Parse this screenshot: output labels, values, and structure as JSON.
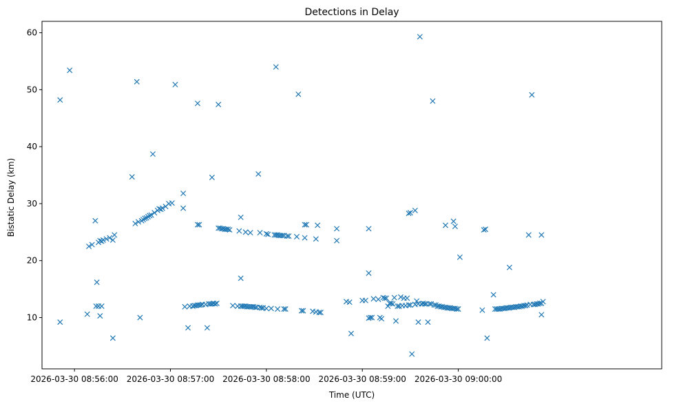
{
  "chart_data": {
    "type": "scatter",
    "title": "Detections in Delay",
    "xlabel": "Time (UTC)",
    "ylabel": "Bistatic Delay (km)",
    "x_unit": "seconds after 2026-03-30 08:55:00 UTC",
    "xlim": [
      39.7,
      427.2
    ],
    "ylim": [
      1.0,
      62.0
    ],
    "x_ticks": [
      {
        "value": 60,
        "label": "2026-03-30 08:56:00"
      },
      {
        "value": 120,
        "label": "2026-03-30 08:57:00"
      },
      {
        "value": 180,
        "label": "2026-03-30 08:58:00"
      },
      {
        "value": 240,
        "label": "2026-03-30 08:59:00"
      },
      {
        "value": 300,
        "label": "2026-03-30 09:00:00"
      }
    ],
    "y_ticks": [
      10,
      20,
      30,
      40,
      50,
      60
    ],
    "marker": "x",
    "color": "#1f77b4",
    "series": [
      {
        "name": "detections",
        "points": [
          [
            51,
            48.2
          ],
          [
            51,
            9.2
          ],
          [
            57,
            53.4
          ],
          [
            68,
            10.6
          ],
          [
            69,
            22.5
          ],
          [
            71,
            22.8
          ],
          [
            73,
            27.0
          ],
          [
            73.5,
            12.0
          ],
          [
            74,
            16.2
          ],
          [
            75,
            23.2
          ],
          [
            75,
            12.0
          ],
          [
            76,
            10.3
          ],
          [
            76,
            23.5
          ],
          [
            77,
            23.4
          ],
          [
            77,
            12.0
          ],
          [
            78,
            23.6
          ],
          [
            80,
            23.8
          ],
          [
            82,
            24.0
          ],
          [
            84,
            23.6
          ],
          [
            85,
            24.5
          ],
          [
            84,
            6.4
          ],
          [
            96,
            34.7
          ],
          [
            98,
            26.5
          ],
          [
            99,
            51.4
          ],
          [
            100,
            26.8
          ],
          [
            101,
            10.0
          ],
          [
            102,
            27.0
          ],
          [
            103,
            27.2
          ],
          [
            104,
            27.4
          ],
          [
            105,
            27.5
          ],
          [
            106,
            27.7
          ],
          [
            107,
            27.9
          ],
          [
            108,
            28.0
          ],
          [
            109,
            38.7
          ],
          [
            110,
            28.4
          ],
          [
            112,
            28.8
          ],
          [
            113,
            29.1
          ],
          [
            114,
            29.0
          ],
          [
            115,
            29.2
          ],
          [
            117,
            29.5
          ],
          [
            119,
            30.0
          ],
          [
            121,
            30.1
          ],
          [
            123,
            50.9
          ],
          [
            128,
            31.8
          ],
          [
            128,
            29.2
          ],
          [
            129,
            11.9
          ],
          [
            131,
            8.2
          ],
          [
            132,
            12.0
          ],
          [
            134,
            12.0
          ],
          [
            135,
            12.1
          ],
          [
            136,
            12.1
          ],
          [
            137,
            12.2
          ],
          [
            137,
            47.6
          ],
          [
            137,
            26.3
          ],
          [
            138,
            26.3
          ],
          [
            138,
            12.2
          ],
          [
            139,
            12.2
          ],
          [
            140,
            12.3
          ],
          [
            142,
            12.3
          ],
          [
            143,
            8.2
          ],
          [
            144,
            12.4
          ],
          [
            145,
            12.4
          ],
          [
            146,
            34.6
          ],
          [
            146,
            12.4
          ],
          [
            147,
            12.5
          ],
          [
            148,
            12.4
          ],
          [
            149,
            12.5
          ],
          [
            150,
            47.4
          ],
          [
            150,
            25.7
          ],
          [
            151,
            25.7
          ],
          [
            152,
            25.6
          ],
          [
            153,
            25.6
          ],
          [
            154,
            25.5
          ],
          [
            155,
            25.5
          ],
          [
            156,
            25.5
          ],
          [
            157,
            25.4
          ],
          [
            159,
            12.1
          ],
          [
            162,
            12.0
          ],
          [
            163,
            25.2
          ],
          [
            164,
            27.6
          ],
          [
            164,
            16.9
          ],
          [
            164,
            12.0
          ],
          [
            165,
            12.0
          ],
          [
            166,
            12.0
          ],
          [
            167,
            25.0
          ],
          [
            167,
            12.0
          ],
          [
            168,
            11.9
          ],
          [
            169,
            11.9
          ],
          [
            170,
            24.9
          ],
          [
            170,
            11.9
          ],
          [
            171,
            11.9
          ],
          [
            172,
            11.9
          ],
          [
            173,
            11.8
          ],
          [
            174,
            11.8
          ],
          [
            175,
            35.2
          ],
          [
            176,
            24.9
          ],
          [
            176,
            11.8
          ],
          [
            177,
            11.7
          ],
          [
            178,
            11.7
          ],
          [
            180,
            24.7
          ],
          [
            180,
            11.6
          ],
          [
            181,
            24.6
          ],
          [
            183,
            11.6
          ],
          [
            185,
            24.5
          ],
          [
            186,
            54.0
          ],
          [
            186,
            24.5
          ],
          [
            187,
            24.5
          ],
          [
            187,
            11.5
          ],
          [
            188,
            24.4
          ],
          [
            189,
            24.4
          ],
          [
            190,
            24.4
          ],
          [
            191,
            11.5
          ],
          [
            191,
            24.4
          ],
          [
            192,
            11.5
          ],
          [
            193,
            24.3
          ],
          [
            194,
            24.3
          ],
          [
            199,
            24.2
          ],
          [
            200,
            49.2
          ],
          [
            202,
            11.2
          ],
          [
            203,
            11.2
          ],
          [
            204,
            26.3
          ],
          [
            205,
            26.3
          ],
          [
            204,
            24.0
          ],
          [
            209,
            11.1
          ],
          [
            211,
            23.8
          ],
          [
            211,
            11.0
          ],
          [
            212,
            26.2
          ],
          [
            213,
            10.9
          ],
          [
            214,
            10.9
          ],
          [
            224,
            25.6
          ],
          [
            224,
            23.5
          ],
          [
            230,
            12.8
          ],
          [
            232,
            12.7
          ],
          [
            233,
            7.2
          ],
          [
            240,
            13.0
          ],
          [
            242,
            13.0
          ],
          [
            244,
            25.6
          ],
          [
            244,
            17.8
          ],
          [
            244,
            9.9
          ],
          [
            245,
            10.0
          ],
          [
            246,
            10.0
          ],
          [
            247,
            13.3
          ],
          [
            250,
            13.2
          ],
          [
            251,
            10.0
          ],
          [
            252,
            9.8
          ],
          [
            253,
            13.5
          ],
          [
            254,
            13.4
          ],
          [
            255,
            13.4
          ],
          [
            256,
            12.0
          ],
          [
            257,
            12.5
          ],
          [
            258,
            12.5
          ],
          [
            259,
            12.4
          ],
          [
            260,
            13.5
          ],
          [
            261,
            9.4
          ],
          [
            262,
            12.0
          ],
          [
            263,
            12.0
          ],
          [
            264,
            13.6
          ],
          [
            265,
            12.1
          ],
          [
            266,
            13.4
          ],
          [
            267,
            12.1
          ],
          [
            268,
            13.4
          ],
          [
            269,
            28.3
          ],
          [
            269,
            12.2
          ],
          [
            270,
            28.4
          ],
          [
            270,
            12.2
          ],
          [
            271,
            3.6
          ],
          [
            273,
            28.8
          ],
          [
            273,
            12.3
          ],
          [
            274,
            12.9
          ],
          [
            275,
            12.4
          ],
          [
            275,
            9.2
          ],
          [
            276,
            59.3
          ],
          [
            277,
            12.4
          ],
          [
            278,
            12.5
          ],
          [
            279,
            12.4
          ],
          [
            280,
            12.4
          ],
          [
            281,
            9.2
          ],
          [
            282,
            12.4
          ],
          [
            283,
            12.4
          ],
          [
            284,
            48.0
          ],
          [
            285,
            12.2
          ],
          [
            286,
            12.2
          ],
          [
            287,
            12.0
          ],
          [
            288,
            12.0
          ],
          [
            289,
            11.9
          ],
          [
            290,
            11.9
          ],
          [
            291,
            11.8
          ],
          [
            292,
            26.2
          ],
          [
            292,
            11.8
          ],
          [
            293,
            11.7
          ],
          [
            294,
            11.7
          ],
          [
            295,
            11.7
          ],
          [
            296,
            11.6
          ],
          [
            297,
            26.9
          ],
          [
            297,
            11.6
          ],
          [
            298,
            26.0
          ],
          [
            298,
            11.6
          ],
          [
            299,
            11.5
          ],
          [
            300,
            11.5
          ],
          [
            301,
            20.6
          ],
          [
            315,
            11.3
          ],
          [
            316,
            25.4
          ],
          [
            317,
            25.5
          ],
          [
            318,
            6.4
          ],
          [
            322,
            14.0
          ],
          [
            323,
            11.5
          ],
          [
            324,
            11.5
          ],
          [
            325,
            11.5
          ],
          [
            326,
            11.5
          ],
          [
            327,
            11.6
          ],
          [
            328,
            11.6
          ],
          [
            329,
            11.6
          ],
          [
            330,
            11.7
          ],
          [
            331,
            11.7
          ],
          [
            332,
            18.8
          ],
          [
            332,
            11.7
          ],
          [
            333,
            11.8
          ],
          [
            334,
            11.8
          ],
          [
            335,
            11.8
          ],
          [
            336,
            11.9
          ],
          [
            337,
            11.9
          ],
          [
            338,
            11.9
          ],
          [
            339,
            12.0
          ],
          [
            340,
            12.0
          ],
          [
            341,
            12.1
          ],
          [
            342,
            12.1
          ],
          [
            343,
            12.2
          ],
          [
            344,
            24.5
          ],
          [
            345,
            12.3
          ],
          [
            346,
            49.1
          ],
          [
            347,
            12.3
          ],
          [
            348,
            12.3
          ],
          [
            349,
            12.4
          ],
          [
            350,
            12.4
          ],
          [
            351,
            12.5
          ],
          [
            352,
            12.5
          ],
          [
            352,
            24.5
          ],
          [
            352,
            10.5
          ],
          [
            353,
            12.8
          ]
        ]
      }
    ]
  }
}
